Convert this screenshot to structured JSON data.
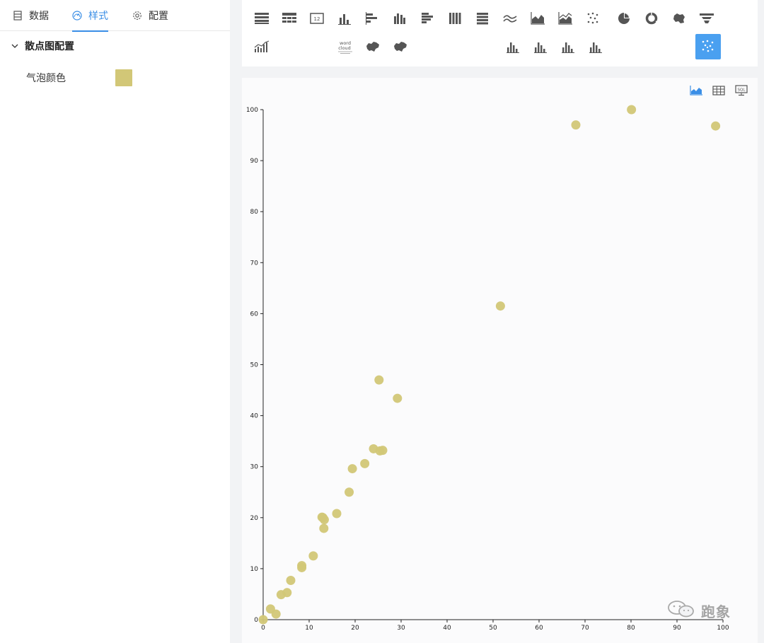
{
  "tabs": [
    {
      "label": "数据",
      "icon": "table-icon"
    },
    {
      "label": "样式",
      "icon": "gauge-icon",
      "active": true
    },
    {
      "label": "配置",
      "icon": "gear-icon"
    }
  ],
  "section": {
    "title": "散点图配置"
  },
  "bubble_color": {
    "label": "气泡颜色",
    "value": "#d2c777"
  },
  "toolbar": {
    "accent": "#4aa0f0",
    "icons_row1": [
      "table-icon",
      "crosstab-icon",
      "kpi-card-icon",
      "bar-chart-icon",
      "horizontal-bar-icon",
      "grouped-bar-icon",
      "stacked-horizontal-bar-icon",
      "stacked-column-icon",
      "stacked-bar-icon",
      "line-chart-icon",
      "area-chart-icon",
      "stacked-area-icon",
      "scatter-icon",
      "pie-chart-icon",
      "donut-chart-icon",
      "map-icon",
      "funnel-icon"
    ],
    "icons_row2": [
      "combo-chart-icon",
      "word-cloud-icon",
      "china-map-icon",
      "china-map-icon",
      "histogram-icon",
      "histogram-icon",
      "histogram-icon",
      "histogram-icon",
      "scatter-selected-icon"
    ],
    "word_cloud_text": "word cloud"
  },
  "view_icons": [
    "chart-view-icon",
    "table-view-icon",
    "sql-view-icon"
  ],
  "watermark": {
    "text": "跑象"
  },
  "chart_data": {
    "type": "scatter",
    "color": "#d2c777",
    "title": "",
    "xlabel": "",
    "ylabel": "",
    "xlim": [
      0,
      100
    ],
    "ylim": [
      0,
      100
    ],
    "xticks": [
      0,
      10,
      20,
      30,
      40,
      50,
      60,
      70,
      80,
      90,
      100
    ],
    "yticks": [
      0,
      10,
      20,
      30,
      40,
      50,
      60,
      70,
      80,
      90,
      100
    ],
    "grid": false,
    "points": [
      [
        0,
        0
      ],
      [
        1.6,
        2.1
      ],
      [
        2.8,
        1.1
      ],
      [
        3.9,
        4.9
      ],
      [
        5.2,
        5.3
      ],
      [
        6,
        7.7
      ],
      [
        8.4,
        10.2
      ],
      [
        8.4,
        10.6
      ],
      [
        10.9,
        12.5
      ],
      [
        13.2,
        17.9
      ],
      [
        13,
        20
      ],
      [
        12.8,
        20.1
      ],
      [
        13.3,
        19.6
      ],
      [
        16,
        20.8
      ],
      [
        18.7,
        25
      ],
      [
        19.4,
        29.6
      ],
      [
        22.1,
        30.6
      ],
      [
        24,
        33.5
      ],
      [
        25.4,
        33.1
      ],
      [
        26,
        33.2
      ],
      [
        25.2,
        47
      ],
      [
        29.2,
        43.4
      ],
      [
        51.6,
        61.5
      ],
      [
        68,
        97
      ],
      [
        80.1,
        100
      ],
      [
        98.4,
        96.8
      ]
    ]
  }
}
